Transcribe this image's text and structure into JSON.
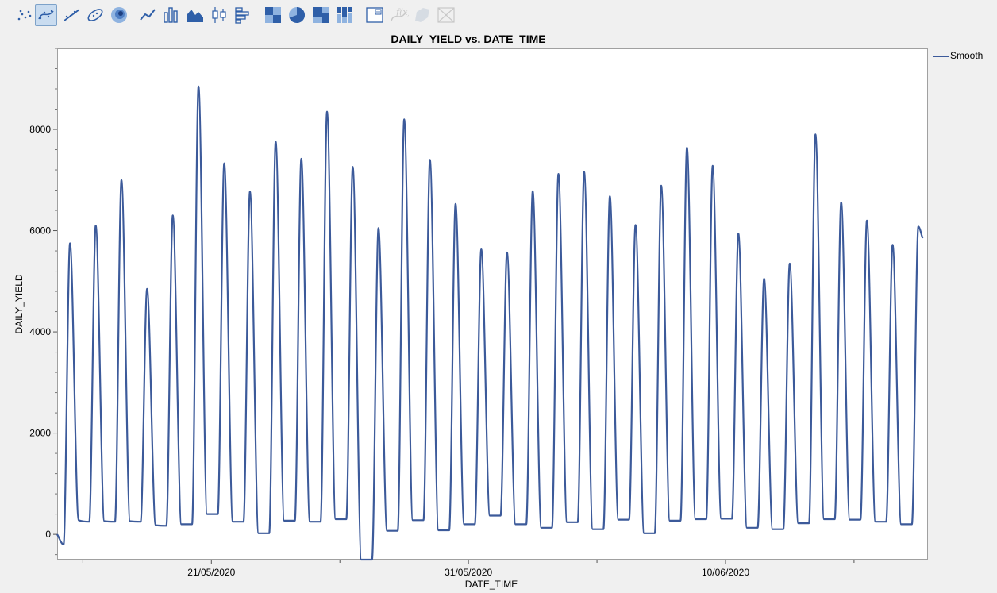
{
  "toolbar": {
    "items": [
      {
        "name": "points-icon",
        "selected": false,
        "disabled": false
      },
      {
        "name": "smoother-icon",
        "selected": true,
        "disabled": false
      },
      {
        "name": "line-of-fit-icon",
        "selected": false,
        "disabled": false
      },
      {
        "name": "ellipse-icon",
        "selected": false,
        "disabled": false
      },
      {
        "name": "contour-icon",
        "selected": false,
        "disabled": false
      },
      {
        "name": "line-chart-icon",
        "selected": false,
        "disabled": false
      },
      {
        "name": "bar-chart-icon",
        "selected": false,
        "disabled": false
      },
      {
        "name": "area-chart-icon",
        "selected": false,
        "disabled": false
      },
      {
        "name": "box-plot-icon",
        "selected": false,
        "disabled": false
      },
      {
        "name": "histogram-icon",
        "selected": false,
        "disabled": false
      },
      {
        "name": "heatmap-icon",
        "selected": false,
        "disabled": false
      },
      {
        "name": "pie-chart-icon",
        "selected": false,
        "disabled": false
      },
      {
        "name": "treemap-icon",
        "selected": false,
        "disabled": false
      },
      {
        "name": "mosaic-icon",
        "selected": false,
        "disabled": false
      },
      {
        "name": "caption-box-icon",
        "selected": false,
        "disabled": false
      },
      {
        "name": "formula-icon",
        "selected": false,
        "disabled": true
      },
      {
        "name": "map-shape-icon",
        "selected": false,
        "disabled": true
      },
      {
        "name": "parallel-plot-icon",
        "selected": false,
        "disabled": true
      }
    ]
  },
  "chart_data": {
    "type": "line",
    "title": "DAILY_YIELD vs. DATE_TIME",
    "xlabel": "DATE_TIME",
    "ylabel": "DAILY_YIELD",
    "x_axis_type": "date",
    "x_ticks": [
      "21/05/2020",
      "31/05/2020",
      "10/06/2020"
    ],
    "xlim": [
      "2020-05-15",
      "2020-06-17T21:00"
    ],
    "ylim": [
      -500,
      9600
    ],
    "y_ticks": [
      0,
      2000,
      4000,
      6000,
      8000
    ],
    "grid": false,
    "legend": {
      "position": "top-right",
      "entries": [
        "Smooth"
      ]
    },
    "color": "#3c5a9a",
    "series": [
      {
        "name": "Smooth",
        "x": [
          "2020-05-15T00:00",
          "2020-05-15T06:00",
          "2020-05-15T12:00",
          "2020-05-15T20:00",
          "2020-05-16T06:00",
          "2020-05-16T12:00",
          "2020-05-16T20:00",
          "2020-05-17T06:00",
          "2020-05-17T12:00",
          "2020-05-17T20:00",
          "2020-05-18T06:00",
          "2020-05-18T12:00",
          "2020-05-18T20:00",
          "2020-05-19T06:00",
          "2020-05-19T12:00",
          "2020-05-19T20:00",
          "2020-05-20T06:00",
          "2020-05-20T12:00",
          "2020-05-20T20:00",
          "2020-05-21T06:00",
          "2020-05-21T12:00",
          "2020-05-21T20:00",
          "2020-05-22T06:00",
          "2020-05-22T12:00",
          "2020-05-22T20:00",
          "2020-05-23T06:00",
          "2020-05-23T12:00",
          "2020-05-23T20:00",
          "2020-05-24T06:00",
          "2020-05-24T12:00",
          "2020-05-24T20:00",
          "2020-05-25T06:00",
          "2020-05-25T12:00",
          "2020-05-25T20:00",
          "2020-05-26T06:00",
          "2020-05-26T12:00",
          "2020-05-26T20:00",
          "2020-05-27T06:00",
          "2020-05-27T12:00",
          "2020-05-27T20:00",
          "2020-05-28T06:00",
          "2020-05-28T12:00",
          "2020-05-28T20:00",
          "2020-05-29T06:00",
          "2020-05-29T12:00",
          "2020-05-29T20:00",
          "2020-05-30T06:00",
          "2020-05-30T12:00",
          "2020-05-30T20:00",
          "2020-05-31T06:00",
          "2020-05-31T12:00",
          "2020-05-31T20:00",
          "2020-06-01T06:00",
          "2020-06-01T12:00",
          "2020-06-01T20:00",
          "2020-06-02T06:00",
          "2020-06-02T12:00",
          "2020-06-02T20:00",
          "2020-06-03T06:00",
          "2020-06-03T12:00",
          "2020-06-03T20:00",
          "2020-06-04T06:00",
          "2020-06-04T12:00",
          "2020-06-04T20:00",
          "2020-06-05T06:00",
          "2020-06-05T12:00",
          "2020-06-05T20:00",
          "2020-06-06T06:00",
          "2020-06-06T12:00",
          "2020-06-06T20:00",
          "2020-06-07T06:00",
          "2020-06-07T12:00",
          "2020-06-07T20:00",
          "2020-06-08T06:00",
          "2020-06-08T12:00",
          "2020-06-08T20:00",
          "2020-06-09T06:00",
          "2020-06-09T12:00",
          "2020-06-09T20:00",
          "2020-06-10T06:00",
          "2020-06-10T12:00",
          "2020-06-10T20:00",
          "2020-06-11T06:00",
          "2020-06-11T12:00",
          "2020-06-11T20:00",
          "2020-06-12T06:00",
          "2020-06-12T12:00",
          "2020-06-12T20:00",
          "2020-06-13T06:00",
          "2020-06-13T12:00",
          "2020-06-13T20:00",
          "2020-06-14T06:00",
          "2020-06-14T12:00",
          "2020-06-14T20:00",
          "2020-06-15T06:00",
          "2020-06-15T12:00",
          "2020-06-15T20:00",
          "2020-06-16T06:00",
          "2020-06-16T12:00",
          "2020-06-16T20:00",
          "2020-06-17T06:00",
          "2020-06-17T12:00",
          "2020-06-17T16:00"
        ],
        "values": [
          0,
          -200,
          5750,
          280,
          250,
          6100,
          260,
          250,
          7000,
          260,
          250,
          4850,
          180,
          170,
          6300,
          200,
          200,
          8850,
          400,
          400,
          7330,
          250,
          250,
          6770,
          20,
          20,
          7760,
          270,
          270,
          7420,
          250,
          250,
          8350,
          300,
          300,
          7260,
          -500,
          -500,
          6050,
          70,
          70,
          8200,
          280,
          280,
          7400,
          80,
          80,
          6530,
          200,
          200,
          5630,
          370,
          370,
          5570,
          200,
          200,
          6780,
          130,
          130,
          7120,
          240,
          240,
          7160,
          100,
          100,
          6680,
          290,
          290,
          6110,
          20,
          20,
          6890,
          270,
          270,
          7640,
          300,
          300,
          7280,
          310,
          310,
          5940,
          130,
          130,
          5050,
          100,
          100,
          5350,
          220,
          220,
          7900,
          300,
          300,
          6560,
          290,
          290,
          6200,
          250,
          250,
          5720,
          200,
          200,
          6080,
          5850
        ]
      }
    ]
  }
}
